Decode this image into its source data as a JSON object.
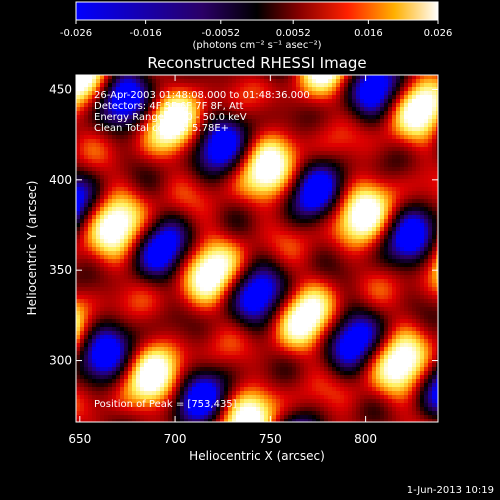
{
  "colorbar": {
    "ticks": [
      "-0.026",
      "-0.016",
      "-0.0052",
      "0.0052",
      "0.016",
      "0.026"
    ],
    "unit_label": "(photons cm⁻² s⁻¹ asec⁻²)"
  },
  "title": "Reconstructed RHESSI Image",
  "annotations": {
    "time": "26-Apr-2003 01:48:08.000 to 01:48:36.000",
    "detectors": "Detectors: 4F 5F 6F 7F 8F, Att",
    "energy": "Energy Range: 25.0 - 50.0 keV",
    "method": "Clean     Total counts: 5.78E+",
    "peak": "Position of Peak = [753,435]"
  },
  "x_axis": {
    "label": "Heliocentric X (arcsec)",
    "ticks": [
      "650",
      "700",
      "750",
      "800"
    ]
  },
  "y_axis": {
    "label": "Heliocentric Y (arcsec)",
    "ticks": [
      "300",
      "350",
      "400",
      "450"
    ]
  },
  "date_stamp": "1-Jun-2013 10:19",
  "chart_data": {
    "type": "heatmap",
    "title": "Reconstructed RHESSI Image",
    "xlabel": "Heliocentric X (arcsec)",
    "ylabel": "Heliocentric Y (arcsec)",
    "xlim": [
      648,
      838
    ],
    "ylim": [
      266,
      458
    ],
    "colorbar_range": [
      -0.026,
      0.026
    ],
    "colormap": [
      "#0000ff",
      "#2a0066",
      "#000000",
      "#7a0000",
      "#e00000",
      "#ff8800",
      "#ffee55",
      "#ffffff"
    ],
    "peak": [
      753,
      435
    ]
  }
}
